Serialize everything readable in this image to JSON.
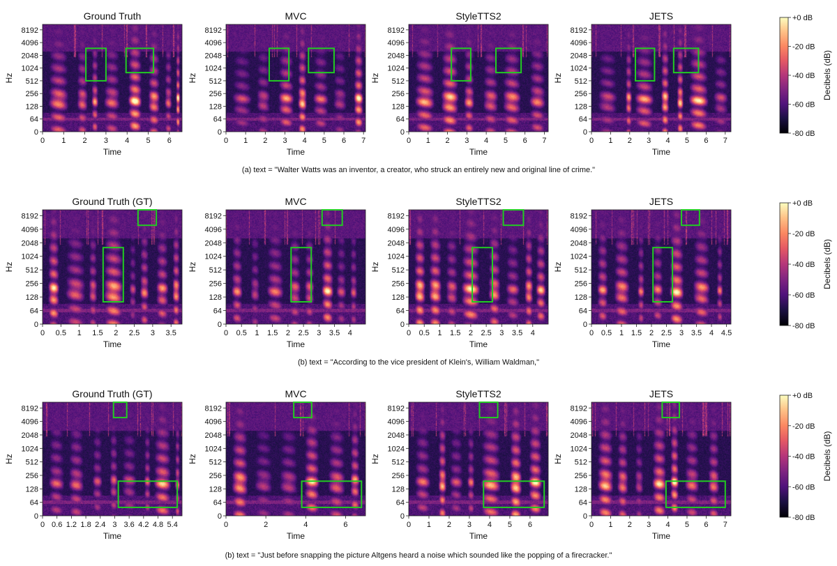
{
  "figure": {
    "colorbar": {
      "label": "Decibels (dB)",
      "ticks": [
        "+0 dB",
        "-20 dB",
        "-40 dB",
        "-60 dB",
        "-80 dB"
      ],
      "range_db": [
        -80,
        0
      ],
      "colormap": "magma"
    },
    "highlight_color": "#22cc22"
  },
  "chart_data": [
    {
      "type": "heatmap",
      "row": 0,
      "caption": "(a) text = \"Walter Watts was an inventor, a creator, who struck an entirely new and original line of crime.\"",
      "panels": [
        {
          "title": "Ground Truth",
          "xlabel": "Time",
          "ylabel": "Hz",
          "xlim": [
            0,
            6.6
          ],
          "xticks": [
            "0",
            "1",
            "2",
            "3",
            "4",
            "5",
            "6"
          ],
          "xtick_values": [
            0,
            1,
            2,
            3,
            4,
            5,
            6
          ],
          "yticks": [
            "0",
            "64",
            "128",
            "256",
            "512",
            "1024",
            "2048",
            "4096",
            "8192"
          ],
          "highlights": [
            {
              "t": [
                2.05,
                3.0
              ],
              "hz": [
                512,
                3000
              ]
            },
            {
              "t": [
                3.95,
                5.25
              ],
              "hz": [
                800,
                3000
              ]
            }
          ]
        },
        {
          "title": "MVC",
          "xlabel": "Time",
          "ylabel": "Hz",
          "xlim": [
            0,
            7.1
          ],
          "xticks": [
            "0",
            "1",
            "2",
            "3",
            "4",
            "5",
            "6",
            "7"
          ],
          "xtick_values": [
            0,
            1,
            2,
            3,
            4,
            5,
            6,
            7
          ],
          "yticks": [
            "0",
            "64",
            "128",
            "256",
            "512",
            "1024",
            "2048",
            "4096",
            "8192"
          ],
          "highlights": [
            {
              "t": [
                2.2,
                3.2
              ],
              "hz": [
                512,
                3000
              ]
            },
            {
              "t": [
                4.2,
                5.5
              ],
              "hz": [
                800,
                3000
              ]
            }
          ]
        },
        {
          "title": "StyleTTS2",
          "xlabel": "Time",
          "ylabel": "Hz",
          "xlim": [
            0,
            7.2
          ],
          "xticks": [
            "0",
            "1",
            "2",
            "3",
            "4",
            "5",
            "6",
            "7"
          ],
          "xtick_values": [
            0,
            1,
            2,
            3,
            4,
            5,
            6,
            7
          ],
          "yticks": [
            "0",
            "64",
            "128",
            "256",
            "512",
            "1024",
            "2048",
            "4096",
            "8192"
          ],
          "highlights": [
            {
              "t": [
                2.2,
                3.2
              ],
              "hz": [
                512,
                3000
              ]
            },
            {
              "t": [
                4.5,
                5.8
              ],
              "hz": [
                800,
                3000
              ]
            }
          ]
        },
        {
          "title": "JETS",
          "xlabel": "Time",
          "ylabel": "Hz",
          "xlim": [
            0,
            7.3
          ],
          "xticks": [
            "0",
            "1",
            "2",
            "3",
            "4",
            "5",
            "6",
            "7"
          ],
          "xtick_values": [
            0,
            1,
            2,
            3,
            4,
            5,
            6,
            7
          ],
          "yticks": [
            "0",
            "64",
            "128",
            "256",
            "512",
            "1024",
            "2048",
            "4096",
            "8192"
          ],
          "highlights": [
            {
              "t": [
                2.3,
                3.3
              ],
              "hz": [
                512,
                3000
              ]
            },
            {
              "t": [
                4.3,
                5.6
              ],
              "hz": [
                800,
                3000
              ]
            }
          ]
        }
      ]
    },
    {
      "type": "heatmap",
      "row": 1,
      "caption": "(b) text = \"According to the vice president of Klein's, William Waldman,\"",
      "panels": [
        {
          "title": "Ground Truth (GT)",
          "xlabel": "Time",
          "ylabel": "Hz",
          "xlim": [
            0,
            3.8
          ],
          "xticks": [
            "0",
            "0.5",
            "1",
            "1.5",
            "2",
            "2.5",
            "3",
            "3.5"
          ],
          "xtick_values": [
            0,
            0.5,
            1,
            1.5,
            2,
            2.5,
            3,
            3.5
          ],
          "yticks": [
            "0",
            "64",
            "128",
            "256",
            "512",
            "1024",
            "2048",
            "4096",
            "8192"
          ],
          "highlights": [
            {
              "t": [
                1.65,
                2.2
              ],
              "hz": [
                100,
                1600
              ]
            },
            {
              "t": [
                2.6,
                3.1
              ],
              "hz": [
                5000,
                11000
              ]
            }
          ]
        },
        {
          "title": "MVC",
          "xlabel": "Time",
          "ylabel": "Hz",
          "xlim": [
            0,
            4.5
          ],
          "xticks": [
            "0",
            "0.5",
            "1",
            "1.5",
            "2",
            "2.5",
            "3",
            "3.5",
            "4"
          ],
          "xtick_values": [
            0,
            0.5,
            1,
            1.5,
            2,
            2.5,
            3,
            3.5,
            4
          ],
          "yticks": [
            "0",
            "64",
            "128",
            "256",
            "512",
            "1024",
            "2048",
            "4096",
            "8192"
          ],
          "highlights": [
            {
              "t": [
                2.1,
                2.75
              ],
              "hz": [
                100,
                1600
              ]
            },
            {
              "t": [
                3.1,
                3.75
              ],
              "hz": [
                5000,
                11000
              ]
            }
          ]
        },
        {
          "title": "StyleTTS2",
          "xlabel": "Time",
          "ylabel": "Hz",
          "xlim": [
            0,
            4.5
          ],
          "xticks": [
            "0",
            "0.5",
            "1",
            "1.5",
            "2",
            "2.5",
            "3",
            "3.5",
            "4"
          ],
          "xtick_values": [
            0,
            0.5,
            1,
            1.5,
            2,
            2.5,
            3,
            3.5,
            4
          ],
          "yticks": [
            "0",
            "64",
            "128",
            "256",
            "512",
            "1024",
            "2048",
            "4096",
            "8192"
          ],
          "highlights": [
            {
              "t": [
                2.05,
                2.7
              ],
              "hz": [
                100,
                1600
              ]
            },
            {
              "t": [
                3.05,
                3.7
              ],
              "hz": [
                5000,
                11000
              ]
            }
          ]
        },
        {
          "title": "JETS",
          "xlabel": "Time",
          "ylabel": "Hz",
          "xlim": [
            0,
            4.65
          ],
          "xticks": [
            "0",
            "0.5",
            "1",
            "1.5",
            "2",
            "2.5",
            "3",
            "3.5",
            "4",
            "4.5"
          ],
          "xtick_values": [
            0,
            0.5,
            1,
            1.5,
            2,
            2.5,
            3,
            3.5,
            4,
            4.5
          ],
          "yticks": [
            "0",
            "64",
            "128",
            "256",
            "512",
            "1024",
            "2048",
            "4096",
            "8192"
          ],
          "highlights": [
            {
              "t": [
                2.05,
                2.7
              ],
              "hz": [
                100,
                1600
              ]
            },
            {
              "t": [
                3.0,
                3.6
              ],
              "hz": [
                5000,
                11000
              ]
            }
          ]
        }
      ]
    },
    {
      "type": "heatmap",
      "row": 2,
      "caption": "(b) text = \"Just before snapping the picture Altgens heard a noise which sounded like the popping of a firecracker.\"",
      "panels": [
        {
          "title": "Ground Truth (GT)",
          "xlabel": "Time",
          "ylabel": "Hz",
          "xlim": [
            0,
            5.8
          ],
          "xticks": [
            "0",
            "0.6",
            "1.2",
            "1.8",
            "2.4",
            "3",
            "3.6",
            "4.2",
            "4.8",
            "5.4"
          ],
          "xtick_values": [
            0,
            0.6,
            1.2,
            1.8,
            2.4,
            3,
            3.6,
            4.2,
            4.8,
            5.4
          ],
          "yticks": [
            "0",
            "64",
            "128",
            "256",
            "512",
            "1024",
            "2048",
            "4096",
            "8192"
          ],
          "highlights": [
            {
              "t": [
                2.95,
                3.5
              ],
              "hz": [
                5000,
                11000
              ]
            },
            {
              "t": [
                3.15,
                5.6
              ],
              "hz": [
                40,
                190
              ]
            }
          ]
        },
        {
          "title": "MVC",
          "xlabel": "Time",
          "ylabel": "Hz",
          "xlim": [
            0,
            7.0
          ],
          "xticks": [
            "0",
            "2",
            "4",
            "6"
          ],
          "xtick_values": [
            0,
            2,
            4,
            6
          ],
          "yticks": [
            "0",
            "64",
            "128",
            "256",
            "512",
            "1024",
            "2048",
            "4096",
            "8192"
          ],
          "highlights": [
            {
              "t": [
                3.4,
                4.3
              ],
              "hz": [
                5000,
                11000
              ]
            },
            {
              "t": [
                3.8,
                6.8
              ],
              "hz": [
                40,
                190
              ]
            }
          ]
        },
        {
          "title": "StyleTTS2",
          "xlabel": "Time",
          "ylabel": "Hz",
          "xlim": [
            0,
            6.9
          ],
          "xticks": [
            "0",
            "1",
            "2",
            "3",
            "4",
            "5",
            "6"
          ],
          "xtick_values": [
            0,
            1,
            2,
            3,
            4,
            5,
            6
          ],
          "yticks": [
            "0",
            "64",
            "128",
            "256",
            "512",
            "1024",
            "2048",
            "4096",
            "8192"
          ],
          "highlights": [
            {
              "t": [
                3.5,
                4.4
              ],
              "hz": [
                5000,
                11000
              ]
            },
            {
              "t": [
                3.7,
                6.7
              ],
              "hz": [
                40,
                190
              ]
            }
          ]
        },
        {
          "title": "JETS",
          "xlabel": "Time",
          "ylabel": "Hz",
          "xlim": [
            0,
            7.3
          ],
          "xticks": [
            "0",
            "1",
            "2",
            "3",
            "4",
            "5",
            "6",
            "7"
          ],
          "xtick_values": [
            0,
            1,
            2,
            3,
            4,
            5,
            6,
            7
          ],
          "yticks": [
            "0",
            "64",
            "128",
            "256",
            "512",
            "1024",
            "2048",
            "4096",
            "8192"
          ],
          "highlights": [
            {
              "t": [
                3.7,
                4.6
              ],
              "hz": [
                5000,
                11000
              ]
            },
            {
              "t": [
                3.9,
                7.0
              ],
              "hz": [
                40,
                190
              ]
            }
          ]
        }
      ]
    }
  ]
}
